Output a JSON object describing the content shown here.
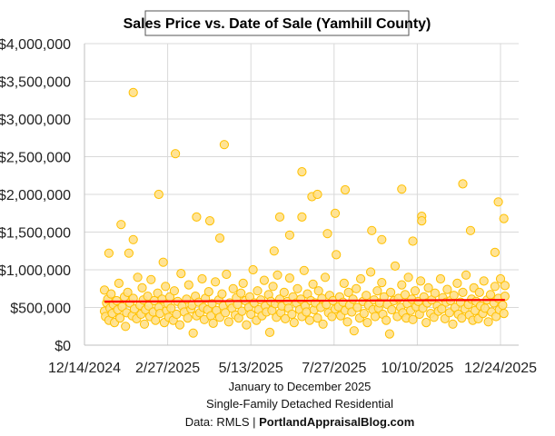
{
  "chart_data": {
    "type": "scatter",
    "title": "Sales Price vs. Date of Sale (Yamhill County)",
    "subtitle_lines": [
      "January to December 2025",
      "Single-Family Detached Residential"
    ],
    "source_prefix": "Data: RMLS | ",
    "source_site": "PortlandAppraisalBlog.com",
    "xlabel": "",
    "ylabel": "",
    "xlim": [
      "2024-12-14",
      "2025-12-24"
    ],
    "ylim": [
      0,
      4000000
    ],
    "x_ticks": [
      "12/14/2024",
      "2/27/2025",
      "5/13/2025",
      "7/27/2025",
      "10/10/2025",
      "12/24/2025"
    ],
    "y_ticks": [
      "$0",
      "$500,000",
      "$1,000,000",
      "$1,500,000",
      "$2,000,000",
      "$2,500,000",
      "$3,000,000",
      "$3,500,000",
      "$4,000,000"
    ],
    "grid": true,
    "legend": "none",
    "colors": {
      "marker_fill": "#FFE08A",
      "marker_edge": "#FFC000",
      "trendline": "#FF0000",
      "grid": "#D9D9D9"
    },
    "trendline": {
      "type": "linear",
      "points": [
        [
          "2025-01-01",
          578000
        ],
        [
          "2025-12-28",
          600000
        ]
      ]
    },
    "points": [
      [
        "2025-01-27",
        3350000
      ],
      [
        "2025-03-06",
        2540000
      ],
      [
        "2025-04-19",
        2660000
      ],
      [
        "2025-02-19",
        2000000
      ],
      [
        "2025-03-25",
        1700000
      ],
      [
        "2025-04-06",
        1650000
      ],
      [
        "2025-04-15",
        1420000
      ],
      [
        "2025-01-16",
        1600000
      ],
      [
        "2025-01-27",
        1400000
      ],
      [
        "2025-01-05",
        1220000
      ],
      [
        "2025-01-23",
        1220000
      ],
      [
        "2025-06-28",
        2300000
      ],
      [
        "2025-07-07",
        1970000
      ],
      [
        "2025-07-12",
        2000000
      ],
      [
        "2025-06-28",
        1700000
      ],
      [
        "2025-08-06",
        2060000
      ],
      [
        "2025-07-28",
        1750000
      ],
      [
        "2025-09-26",
        2070000
      ],
      [
        "2025-11-20",
        2140000
      ],
      [
        "2025-12-22",
        1900000
      ],
      [
        "2025-12-27",
        1680000
      ],
      [
        "2025-10-14",
        1710000
      ],
      [
        "2025-10-14",
        1650000
      ],
      [
        "2025-06-08",
        1700000
      ],
      [
        "2025-06-17",
        1460000
      ],
      [
        "2025-07-21",
        1480000
      ],
      [
        "2025-08-30",
        1520000
      ],
      [
        "2025-11-27",
        1520000
      ],
      [
        "2025-12-19",
        1230000
      ],
      [
        "2025-02-23",
        1100000
      ],
      [
        "2025-06-03",
        1250000
      ],
      [
        "2025-10-06",
        1380000
      ],
      [
        "2025-09-08",
        1400000
      ],
      [
        "2025-01-01",
        450000
      ],
      [
        "2025-01-01",
        730000
      ],
      [
        "2025-01-02",
        380000
      ],
      [
        "2025-01-03",
        560000
      ],
      [
        "2025-01-04",
        610000
      ],
      [
        "2025-01-05",
        330000
      ],
      [
        "2025-01-06",
        490000
      ],
      [
        "2025-01-07",
        680000
      ],
      [
        "2025-01-08",
        420000
      ],
      [
        "2025-01-09",
        540000
      ],
      [
        "2025-01-10",
        300000
      ],
      [
        "2025-01-12",
        590000
      ],
      [
        "2025-01-13",
        470000
      ],
      [
        "2025-01-14",
        820000
      ],
      [
        "2025-01-15",
        360000
      ],
      [
        "2025-01-17",
        510000
      ],
      [
        "2025-01-19",
        640000
      ],
      [
        "2025-01-20",
        250000
      ],
      [
        "2025-01-21",
        430000
      ],
      [
        "2025-01-22",
        700000
      ],
      [
        "2025-01-24",
        560000
      ],
      [
        "2025-01-26",
        390000
      ],
      [
        "2025-01-27",
        620000
      ],
      [
        "2025-01-28",
        480000
      ],
      [
        "2025-01-30",
        350000
      ],
      [
        "2025-01-31",
        900000
      ],
      [
        "2025-02-02",
        530000
      ],
      [
        "2025-02-03",
        410000
      ],
      [
        "2025-02-04",
        760000
      ],
      [
        "2025-02-05",
        600000
      ],
      [
        "2025-02-06",
        280000
      ],
      [
        "2025-02-07",
        470000
      ],
      [
        "2025-02-09",
        650000
      ],
      [
        "2025-02-10",
        520000
      ],
      [
        "2025-02-11",
        380000
      ],
      [
        "2025-02-12",
        870000
      ],
      [
        "2025-02-14",
        440000
      ],
      [
        "2025-02-15",
        590000
      ],
      [
        "2025-02-16",
        330000
      ],
      [
        "2025-02-18",
        690000
      ],
      [
        "2025-02-19",
        500000
      ],
      [
        "2025-02-20",
        420000
      ],
      [
        "2025-02-22",
        610000
      ],
      [
        "2025-02-24",
        300000
      ],
      [
        "2025-02-25",
        780000
      ],
      [
        "2025-02-26",
        460000
      ],
      [
        "2025-02-27",
        550000
      ],
      [
        "2025-02-28",
        370000
      ],
      [
        "2025-03-01",
        640000
      ],
      [
        "2025-03-02",
        490000
      ],
      [
        "2025-03-04",
        330000
      ],
      [
        "2025-03-05",
        720000
      ],
      [
        "2025-03-07",
        410000
      ],
      [
        "2025-03-08",
        580000
      ],
      [
        "2025-03-10",
        270000
      ],
      [
        "2025-03-11",
        950000
      ],
      [
        "2025-03-12",
        520000
      ],
      [
        "2025-03-14",
        440000
      ],
      [
        "2025-03-16",
        610000
      ],
      [
        "2025-03-17",
        360000
      ],
      [
        "2025-03-18",
        800000
      ],
      [
        "2025-03-20",
        480000
      ],
      [
        "2025-03-21",
        530000
      ],
      [
        "2025-03-22",
        160000
      ],
      [
        "2025-03-24",
        650000
      ],
      [
        "2025-03-25",
        390000
      ],
      [
        "2025-03-27",
        570000
      ],
      [
        "2025-03-28",
        430000
      ],
      [
        "2025-03-30",
        880000
      ],
      [
        "2025-03-31",
        500000
      ],
      [
        "2025-04-01",
        340000
      ],
      [
        "2025-04-02",
        620000
      ],
      [
        "2025-04-04",
        470000
      ],
      [
        "2025-04-05",
        710000
      ],
      [
        "2025-04-07",
        390000
      ],
      [
        "2025-04-08",
        550000
      ],
      [
        "2025-04-09",
        290000
      ],
      [
        "2025-04-11",
        840000
      ],
      [
        "2025-04-12",
        460000
      ],
      [
        "2025-04-14",
        600000
      ],
      [
        "2025-04-15",
        370000
      ],
      [
        "2025-04-17",
        680000
      ],
      [
        "2025-04-18",
        520000
      ],
      [
        "2025-04-20",
        430000
      ],
      [
        "2025-04-21",
        940000
      ],
      [
        "2025-04-23",
        310000
      ],
      [
        "2025-04-24",
        560000
      ],
      [
        "2025-04-26",
        490000
      ],
      [
        "2025-04-27",
        750000
      ],
      [
        "2025-04-29",
        400000
      ],
      [
        "2025-04-30",
        630000
      ],
      [
        "2025-05-01",
        540000
      ],
      [
        "2025-05-02",
        360000
      ],
      [
        "2025-05-04",
        690000
      ],
      [
        "2025-05-05",
        450000
      ],
      [
        "2025-05-06",
        820000
      ],
      [
        "2025-05-08",
        590000
      ],
      [
        "2025-05-09",
        270000
      ],
      [
        "2025-05-11",
        500000
      ],
      [
        "2025-05-12",
        640000
      ],
      [
        "2025-05-13",
        410000
      ],
      [
        "2025-05-15",
        1000000
      ],
      [
        "2025-05-16",
        560000
      ],
      [
        "2025-05-18",
        330000
      ],
      [
        "2025-05-19",
        720000
      ],
      [
        "2025-05-20",
        470000
      ],
      [
        "2025-05-22",
        600000
      ],
      [
        "2025-05-23",
        390000
      ],
      [
        "2025-05-25",
        860000
      ],
      [
        "2025-05-26",
        520000
      ],
      [
        "2025-05-27",
        440000
      ],
      [
        "2025-05-29",
        670000
      ],
      [
        "2025-05-30",
        170000
      ],
      [
        "2025-05-31",
        580000
      ],
      [
        "2025-06-01",
        460000
      ],
      [
        "2025-06-02",
        780000
      ],
      [
        "2025-06-04",
        550000
      ],
      [
        "2025-06-05",
        370000
      ],
      [
        "2025-06-06",
        930000
      ],
      [
        "2025-06-08",
        610000
      ],
      [
        "2025-06-09",
        430000
      ],
      [
        "2025-06-10",
        520000
      ],
      [
        "2025-06-12",
        700000
      ],
      [
        "2025-06-13",
        350000
      ],
      [
        "2025-06-15",
        580000
      ],
      [
        "2025-06-16",
        490000
      ],
      [
        "2025-06-17",
        890000
      ],
      [
        "2025-06-19",
        410000
      ],
      [
        "2025-06-20",
        640000
      ],
      [
        "2025-06-21",
        300000
      ],
      [
        "2025-06-23",
        560000
      ],
      [
        "2025-06-24",
        750000
      ],
      [
        "2025-06-26",
        470000
      ],
      [
        "2025-06-27",
        610000
      ],
      [
        "2025-06-28",
        380000
      ],
      [
        "2025-06-30",
        990000
      ],
      [
        "2025-07-01",
        520000
      ],
      [
        "2025-07-02",
        440000
      ],
      [
        "2025-07-03",
        680000
      ],
      [
        "2025-07-05",
        330000
      ],
      [
        "2025-07-06",
        590000
      ],
      [
        "2025-07-08",
        810000
      ],
      [
        "2025-07-09",
        470000
      ],
      [
        "2025-07-10",
        560000
      ],
      [
        "2025-07-12",
        360000
      ],
      [
        "2025-07-13",
        720000
      ],
      [
        "2025-07-15",
        500000
      ],
      [
        "2025-07-16",
        620000
      ],
      [
        "2025-07-17",
        280000
      ],
      [
        "2025-07-19",
        900000
      ],
      [
        "2025-07-20",
        540000
      ],
      [
        "2025-07-22",
        430000
      ],
      [
        "2025-07-23",
        660000
      ],
      [
        "2025-07-25",
        380000
      ],
      [
        "2025-07-26",
        590000
      ],
      [
        "2025-07-28",
        480000
      ],
      [
        "2025-07-29",
        1200000
      ],
      [
        "2025-07-31",
        510000
      ],
      [
        "2025-08-01",
        640000
      ],
      [
        "2025-08-02",
        390000
      ],
      [
        "2025-08-04",
        570000
      ],
      [
        "2025-08-05",
        820000
      ],
      [
        "2025-08-06",
        460000
      ],
      [
        "2025-08-08",
        310000
      ],
      [
        "2025-08-09",
        700000
      ],
      [
        "2025-08-10",
        530000
      ],
      [
        "2025-08-12",
        440000
      ],
      [
        "2025-08-13",
        610000
      ],
      [
        "2025-08-14",
        190000
      ],
      [
        "2025-08-16",
        750000
      ],
      [
        "2025-08-17",
        500000
      ],
      [
        "2025-08-19",
        360000
      ],
      [
        "2025-08-20",
        880000
      ],
      [
        "2025-08-22",
        580000
      ],
      [
        "2025-08-23",
        420000
      ],
      [
        "2025-08-25",
        660000
      ],
      [
        "2025-08-26",
        300000
      ],
      [
        "2025-08-27",
        530000
      ],
      [
        "2025-08-29",
        970000
      ],
      [
        "2025-08-31",
        470000
      ],
      [
        "2025-09-01",
        600000
      ],
      [
        "2025-09-02",
        380000
      ],
      [
        "2025-09-04",
        720000
      ],
      [
        "2025-09-05",
        490000
      ],
      [
        "2025-09-06",
        560000
      ],
      [
        "2025-09-08",
        830000
      ],
      [
        "2025-09-09",
        410000
      ],
      [
        "2025-09-10",
        640000
      ],
      [
        "2025-09-12",
        330000
      ],
      [
        "2025-09-13",
        540000
      ],
      [
        "2025-09-15",
        150000
      ],
      [
        "2025-09-16",
        700000
      ],
      [
        "2025-09-17",
        470000
      ],
      [
        "2025-09-19",
        590000
      ],
      [
        "2025-09-20",
        1050000
      ],
      [
        "2025-09-22",
        380000
      ],
      [
        "2025-09-23",
        620000
      ],
      [
        "2025-09-25",
        500000
      ],
      [
        "2025-09-26",
        800000
      ],
      [
        "2025-09-27",
        430000
      ],
      [
        "2025-09-29",
        670000
      ],
      [
        "2025-09-30",
        360000
      ],
      [
        "2025-10-01",
        550000
      ],
      [
        "2025-10-02",
        900000
      ],
      [
        "2025-10-04",
        460000
      ],
      [
        "2025-10-05",
        610000
      ],
      [
        "2025-10-06",
        340000
      ],
      [
        "2025-10-08",
        720000
      ],
      [
        "2025-10-09",
        510000
      ],
      [
        "2025-10-11",
        580000
      ],
      [
        "2025-10-12",
        410000
      ],
      [
        "2025-10-13",
        850000
      ],
      [
        "2025-10-15",
        490000
      ],
      [
        "2025-10-16",
        640000
      ],
      [
        "2025-10-18",
        300000
      ],
      [
        "2025-10-19",
        560000
      ],
      [
        "2025-10-20",
        760000
      ],
      [
        "2025-10-22",
        420000
      ],
      [
        "2025-10-23",
        600000
      ],
      [
        "2025-10-25",
        370000
      ],
      [
        "2025-10-26",
        690000
      ],
      [
        "2025-10-28",
        520000
      ],
      [
        "2025-10-29",
        450000
      ],
      [
        "2025-10-31",
        880000
      ],
      [
        "2025-11-01",
        480000
      ],
      [
        "2025-11-02",
        630000
      ],
      [
        "2025-11-04",
        350000
      ],
      [
        "2025-11-05",
        570000
      ],
      [
        "2025-11-06",
        740000
      ],
      [
        "2025-11-08",
        430000
      ],
      [
        "2025-11-09",
        590000
      ],
      [
        "2025-11-11",
        280000
      ],
      [
        "2025-11-12",
        660000
      ],
      [
        "2025-11-13",
        500000
      ],
      [
        "2025-11-15",
        820000
      ],
      [
        "2025-11-16",
        410000
      ],
      [
        "2025-11-18",
        570000
      ],
      [
        "2025-11-19",
        360000
      ],
      [
        "2025-11-20",
        700000
      ],
      [
        "2025-11-22",
        480000
      ],
      [
        "2025-11-23",
        930000
      ],
      [
        "2025-11-25",
        540000
      ],
      [
        "2025-11-26",
        400000
      ],
      [
        "2025-11-28",
        610000
      ],
      [
        "2025-11-29",
        330000
      ],
      [
        "2025-11-30",
        760000
      ],
      [
        "2025-12-01",
        460000
      ],
      [
        "2025-12-02",
        580000
      ],
      [
        "2025-12-04",
        350000
      ],
      [
        "2025-12-05",
        700000
      ],
      [
        "2025-12-06",
        520000
      ],
      [
        "2025-12-08",
        420000
      ],
      [
        "2025-12-09",
        850000
      ],
      [
        "2025-12-10",
        490000
      ],
      [
        "2025-12-12",
        600000
      ],
      [
        "2025-12-13",
        310000
      ],
      [
        "2025-12-15",
        670000
      ],
      [
        "2025-12-16",
        440000
      ],
      [
        "2025-12-18",
        560000
      ],
      [
        "2025-12-19",
        780000
      ],
      [
        "2025-12-20",
        380000
      ],
      [
        "2025-12-22",
        620000
      ],
      [
        "2025-12-23",
        470000
      ],
      [
        "2025-12-24",
        880000
      ],
      [
        "2025-12-26",
        530000
      ],
      [
        "2025-12-27",
        420000
      ],
      [
        "2025-12-28",
        650000
      ],
      [
        "2025-12-28",
        790000
      ]
    ]
  }
}
